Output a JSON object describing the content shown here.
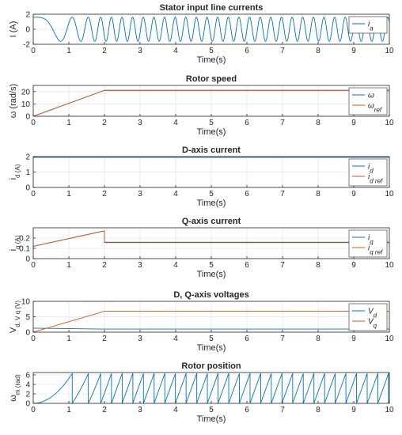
{
  "colors": {
    "series1": "#0072BD",
    "series2": "#D95319",
    "series_gray": "#A0A0A0",
    "axis": "#262626",
    "grid": "#E6E6E6"
  },
  "chart_data": [
    {
      "id": "stator-currents",
      "type": "line",
      "title": "Stator input line currents",
      "xlabel": "Time(s)",
      "ylabel": "I (A)",
      "xlim": [
        0,
        10
      ],
      "ylim": [
        -2,
        2
      ],
      "xticks": [
        "0",
        "1",
        "2",
        "3",
        "4",
        "5",
        "6",
        "7",
        "8",
        "9",
        "10"
      ],
      "yticks": [
        "-2",
        "0",
        "2"
      ],
      "grid": true,
      "legend_position": "top-right",
      "series": [
        {
          "name": "i_a",
          "color": "#0072BD",
          "kind": "sine_ramp",
          "amplitude": 1.6,
          "ramp_until": 2,
          "final_freq": 3.35
        }
      ]
    },
    {
      "id": "rotor-speed",
      "type": "line",
      "title": "Rotor speed",
      "xlabel": "Time(s)",
      "ylabel": "ω (rad/s)",
      "xlim": [
        0,
        10
      ],
      "ylim": [
        0,
        25
      ],
      "xticks": [
        "0",
        "1",
        "2",
        "3",
        "4",
        "5",
        "6",
        "7",
        "8",
        "9",
        "10"
      ],
      "yticks": [
        "0",
        "10",
        "20"
      ],
      "grid": true,
      "legend_position": "top-right",
      "series": [
        {
          "name": "ω",
          "color": "#0072BD",
          "x": [
            0,
            2,
            10
          ],
          "y": [
            0,
            21,
            21
          ]
        },
        {
          "name": "ω_ref",
          "color": "#D95319",
          "x": [
            0,
            2,
            10
          ],
          "y": [
            0,
            21,
            21
          ]
        }
      ]
    },
    {
      "id": "d-axis-current",
      "type": "line",
      "title": "D-axis current",
      "xlabel": "Time(s)",
      "ylabel": "i_d (A)",
      "xlim": [
        0,
        10
      ],
      "ylim": [
        0,
        2
      ],
      "xticks": [
        "0",
        "1",
        "2",
        "3",
        "4",
        "5",
        "6",
        "7",
        "8",
        "9",
        "10"
      ],
      "yticks": [
        "0",
        "1",
        "2"
      ],
      "grid": true,
      "legend_position": "bottom-right",
      "series": [
        {
          "name": "i_d",
          "color": "#0072BD",
          "x": [
            0,
            10
          ],
          "y": [
            1.95,
            1.95
          ]
        },
        {
          "name": "i_d_ref",
          "color": "#D95319",
          "x": [
            0,
            10
          ],
          "y": [
            2.0,
            2.0
          ]
        }
      ]
    },
    {
      "id": "q-axis-current",
      "type": "line",
      "title": "Q-axis current",
      "xlabel": "Time(s)",
      "ylabel": "i_q (A)",
      "xlim": [
        0,
        10
      ],
      "ylim": [
        0,
        0.3
      ],
      "xticks": [
        "0",
        "1",
        "2",
        "3",
        "4",
        "5",
        "6",
        "7",
        "8",
        "9",
        "10"
      ],
      "yticks": [
        "0",
        "0.1",
        "0.2"
      ],
      "grid": true,
      "legend_position": "bottom-right",
      "series": [
        {
          "name": "i_q",
          "color": "#0072BD",
          "x": [
            0,
            2,
            2,
            10
          ],
          "y": [
            0.12,
            0.27,
            0.16,
            0.16
          ]
        },
        {
          "name": "i_q_ref",
          "color": "#D95319",
          "x": [
            0,
            2,
            2,
            10
          ],
          "y": [
            0.12,
            0.27,
            0.155,
            0.155
          ]
        }
      ]
    },
    {
      "id": "dq-voltages",
      "type": "line",
      "title": "D, Q-axis voltages",
      "xlabel": "Time(s)",
      "ylabel": "V_d, V_q (V)",
      "xlim": [
        0,
        10
      ],
      "ylim": [
        0,
        10
      ],
      "xticks": [
        "0",
        "1",
        "2",
        "3",
        "4",
        "5",
        "6",
        "7",
        "8",
        "9",
        "10"
      ],
      "yticks": [
        "0",
        "5",
        "10"
      ],
      "grid": true,
      "legend_position": "bottom-right",
      "series": [
        {
          "name": "V_d",
          "color": "#0072BD",
          "x": [
            0,
            2,
            10
          ],
          "y": [
            1.3,
            1.0,
            1.0
          ]
        },
        {
          "name": "V_q",
          "color": "#D95319",
          "x": [
            0,
            2,
            10
          ],
          "y": [
            0,
            6.8,
            6.8
          ]
        }
      ]
    },
    {
      "id": "rotor-position",
      "type": "line",
      "title": "Rotor position",
      "xlabel": "Time(s)",
      "ylabel": "ω_m (rad)",
      "xlim": [
        0,
        10
      ],
      "ylim": [
        0,
        6.5
      ],
      "xticks": [
        "0",
        "1",
        "2",
        "3",
        "4",
        "5",
        "6",
        "7",
        "8",
        "9",
        "10"
      ],
      "yticks": [
        "0",
        "2",
        "4",
        "6"
      ],
      "grid": true,
      "series": [
        {
          "name": "",
          "color": "#0072BD",
          "kind": "sawtooth",
          "speed_ramp_until": 2,
          "final_speed": 21,
          "wrap": 6.283
        }
      ]
    }
  ]
}
